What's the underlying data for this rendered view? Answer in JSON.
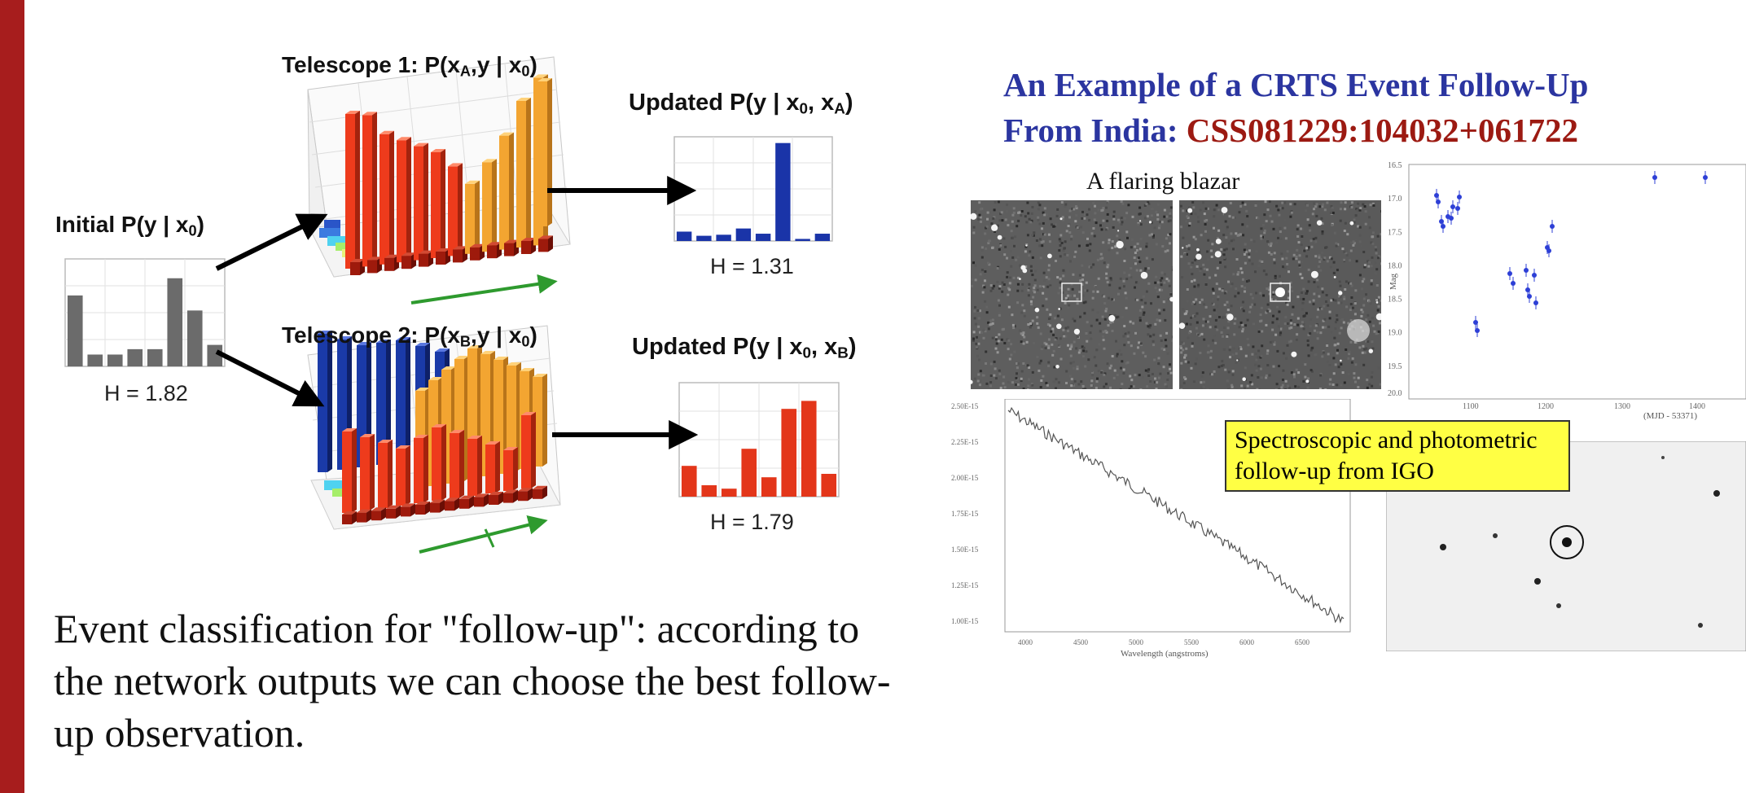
{
  "slide": {
    "accent_color": "#a71d1d"
  },
  "left": {
    "initial": {
      "label_prefix": "Initial  P(y | x",
      "label_sub": "0",
      "label_suffix": ")",
      "entropy": "H = 1.82",
      "bar_color": "#6b6b6b",
      "values": [
        0.66,
        0.11,
        0.11,
        0.16,
        0.16,
        0.82,
        0.52,
        0.2
      ]
    },
    "telescope1": {
      "label_prefix": "Telescope 1:  P(x",
      "label_sub1": "A",
      "label_mid": ",y | x",
      "label_sub2": "0",
      "label_suffix": ")"
    },
    "telescope2": {
      "label_prefix": "Telescope 2:  P(x",
      "label_sub1": "B",
      "label_mid": ",y | x",
      "label_sub2": "0",
      "label_suffix": ")"
    },
    "updated_a": {
      "label_prefix": "Updated P(y | x",
      "label_sub1": "0",
      "label_mid": ", x",
      "label_sub2": "A",
      "label_suffix": ")",
      "entropy": "H = 1.31",
      "bar_color": "#1a34a8",
      "values": [
        0.09,
        0.05,
        0.06,
        0.12,
        0.07,
        0.94,
        0.02,
        0.07
      ]
    },
    "updated_b": {
      "label_prefix": "Updated  P(y | x",
      "label_sub1": "0",
      "label_mid": ", x",
      "label_sub2": "B",
      "label_suffix": ")",
      "entropy": "H = 1.79",
      "bar_color": "#e3361a",
      "values": [
        0.27,
        0.1,
        0.07,
        0.42,
        0.17,
        0.77,
        0.84,
        0.2
      ]
    },
    "caption": "Event classification for \"follow-up\": according to the network outputs we can choose the best follow-up observation."
  },
  "right": {
    "title_line1": "An Example of a CRTS Event Follow-Up",
    "title_line2_prefix": "From India:  ",
    "title_line2_event": "CSS081229:104032+061722",
    "title_color": "#2b35a0",
    "event_color": "#9c1a12",
    "image_caption": "A flaring blazar",
    "note": "Spectroscopic and photometric follow-up from IGO",
    "lightcurve": {
      "y_ticks": [
        "16.5",
        "17.0",
        "17.5",
        "18.0",
        "18.5",
        "19.0",
        "19.5",
        "20.0"
      ],
      "x_ticks": [
        "1100",
        "1200",
        "1300",
        "1400"
      ],
      "y_label": "Mag",
      "x_label": "(MJD - 53371)",
      "point_color": "#2d3fd6"
    },
    "spectrum": {
      "y_ticks": [
        "2.50E-15",
        "2.25E-15",
        "2.00E-15",
        "1.75E-15",
        "1.50E-15",
        "1.25E-15",
        "1.00E-15"
      ],
      "x_ticks": [
        "4000",
        "4500",
        "5000",
        "5500",
        "6000",
        "6500"
      ],
      "x_label": "Wavelength (angstroms)"
    }
  }
}
